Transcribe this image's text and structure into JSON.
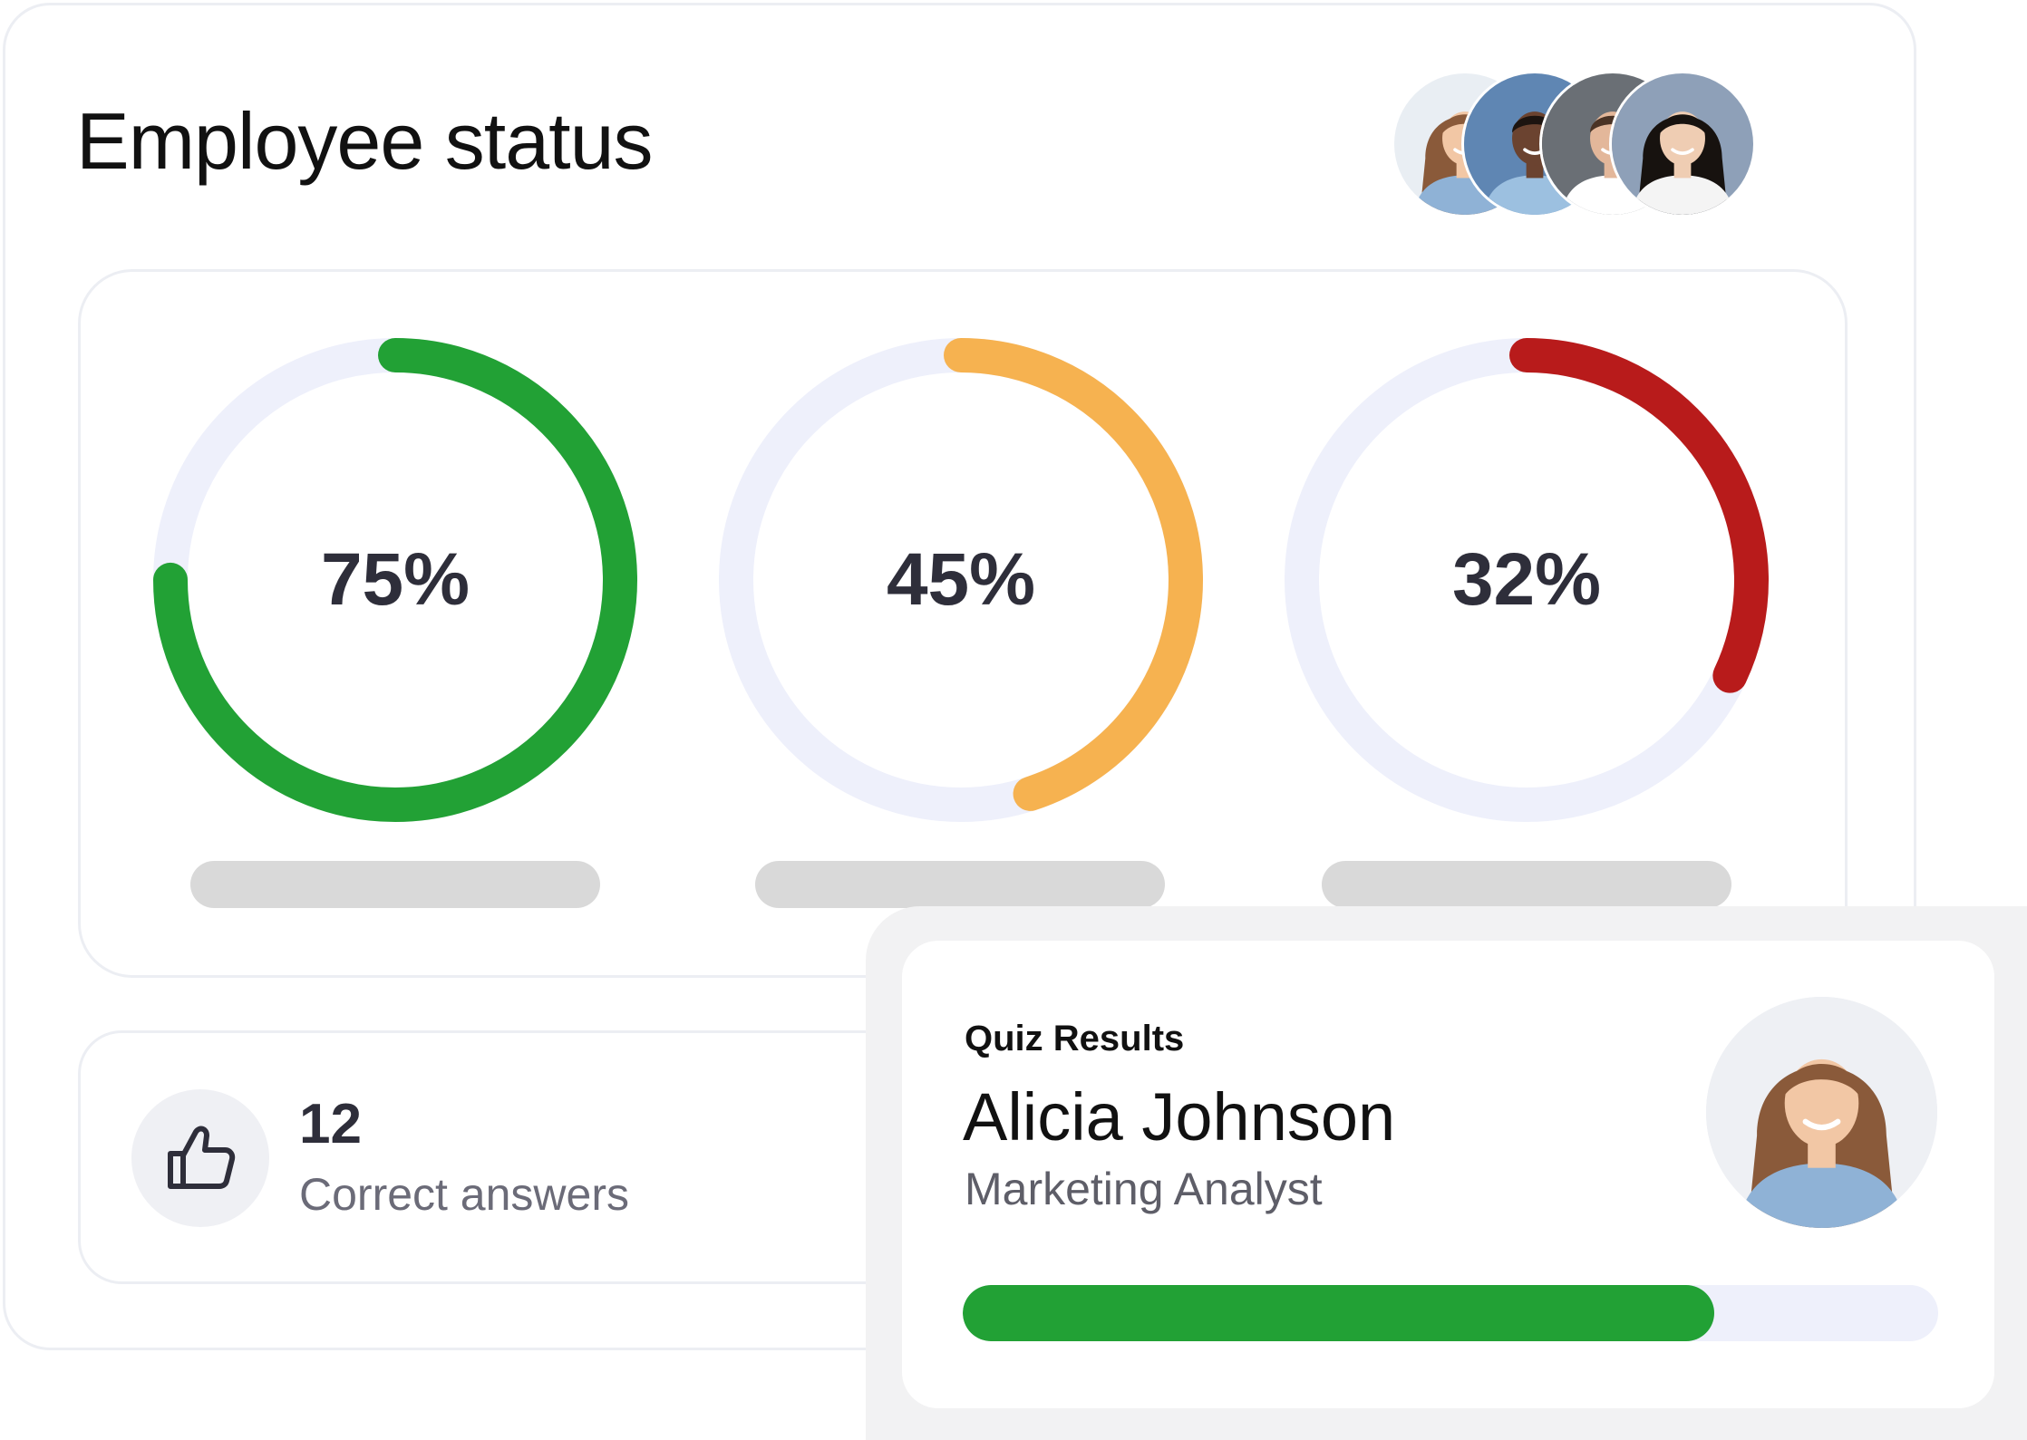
{
  "header": {
    "title": "Employee status"
  },
  "team_avatars": [
    {
      "icon": "avatar-woman-long-hair",
      "skin": "#f2c7a5",
      "hair": "#8a5a3a",
      "bg": "#e9eef3",
      "shirt": "#8fb2d6"
    },
    {
      "icon": "avatar-man-dark-skin",
      "skin": "#6b4330",
      "hair": "#1c1410",
      "bg": "#5f86b3",
      "shirt": "#9cc0e0"
    },
    {
      "icon": "avatar-man-suit",
      "skin": "#e3b79a",
      "hair": "#4a3325",
      "bg": "#6a6f75",
      "shirt": "#ffffff"
    },
    {
      "icon": "avatar-woman-dark-hair",
      "skin": "#efcdb3",
      "hair": "#17120f",
      "bg": "#8ea0b8",
      "shirt": "#f4f4f4"
    }
  ],
  "gauges": [
    {
      "value_label": "75%",
      "fraction": 0.75,
      "color": "#22a135",
      "track_color": "#eef0fb"
    },
    {
      "value_label": "45%",
      "fraction": 0.45,
      "color": "#f6b250",
      "track_color": "#eef0fb"
    },
    {
      "value_label": "32%",
      "fraction": 0.32,
      "color": "#b81b1b",
      "track_color": "#eef0fb"
    }
  ],
  "answers": {
    "count": "12",
    "label": "Correct answers",
    "icon": "thumbs-up-icon"
  },
  "quiz": {
    "heading": "Quiz Results",
    "name": "Alicia Johnson",
    "role": "Marketing Analyst",
    "avatar_icon": "avatar-woman-long-hair",
    "progress": 0.77,
    "progress_color": "#22a135"
  }
}
